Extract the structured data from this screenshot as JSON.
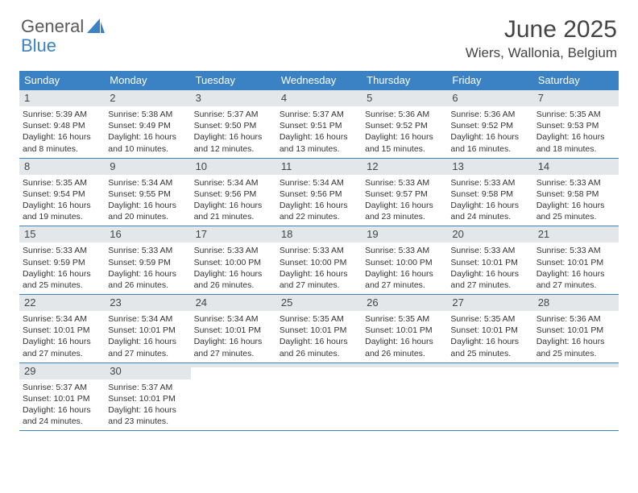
{
  "brand": {
    "part1": "General",
    "part2": "Blue"
  },
  "title": "June 2025",
  "location": "Wiers, Wallonia, Belgium",
  "colors": {
    "header_bg": "#3b82c4",
    "daynum_bg": "#e4e7ea",
    "text": "#333333",
    "rule": "#3b82c4"
  },
  "dayNames": [
    "Sunday",
    "Monday",
    "Tuesday",
    "Wednesday",
    "Thursday",
    "Friday",
    "Saturday"
  ],
  "weeks": [
    [
      {
        "n": "1",
        "sr": "5:39 AM",
        "ss": "9:48 PM",
        "dl": "16 hours and 8 minutes."
      },
      {
        "n": "2",
        "sr": "5:38 AM",
        "ss": "9:49 PM",
        "dl": "16 hours and 10 minutes."
      },
      {
        "n": "3",
        "sr": "5:37 AM",
        "ss": "9:50 PM",
        "dl": "16 hours and 12 minutes."
      },
      {
        "n": "4",
        "sr": "5:37 AM",
        "ss": "9:51 PM",
        "dl": "16 hours and 13 minutes."
      },
      {
        "n": "5",
        "sr": "5:36 AM",
        "ss": "9:52 PM",
        "dl": "16 hours and 15 minutes."
      },
      {
        "n": "6",
        "sr": "5:36 AM",
        "ss": "9:52 PM",
        "dl": "16 hours and 16 minutes."
      },
      {
        "n": "7",
        "sr": "5:35 AM",
        "ss": "9:53 PM",
        "dl": "16 hours and 18 minutes."
      }
    ],
    [
      {
        "n": "8",
        "sr": "5:35 AM",
        "ss": "9:54 PM",
        "dl": "16 hours and 19 minutes."
      },
      {
        "n": "9",
        "sr": "5:34 AM",
        "ss": "9:55 PM",
        "dl": "16 hours and 20 minutes."
      },
      {
        "n": "10",
        "sr": "5:34 AM",
        "ss": "9:56 PM",
        "dl": "16 hours and 21 minutes."
      },
      {
        "n": "11",
        "sr": "5:34 AM",
        "ss": "9:56 PM",
        "dl": "16 hours and 22 minutes."
      },
      {
        "n": "12",
        "sr": "5:33 AM",
        "ss": "9:57 PM",
        "dl": "16 hours and 23 minutes."
      },
      {
        "n": "13",
        "sr": "5:33 AM",
        "ss": "9:58 PM",
        "dl": "16 hours and 24 minutes."
      },
      {
        "n": "14",
        "sr": "5:33 AM",
        "ss": "9:58 PM",
        "dl": "16 hours and 25 minutes."
      }
    ],
    [
      {
        "n": "15",
        "sr": "5:33 AM",
        "ss": "9:59 PM",
        "dl": "16 hours and 25 minutes."
      },
      {
        "n": "16",
        "sr": "5:33 AM",
        "ss": "9:59 PM",
        "dl": "16 hours and 26 minutes."
      },
      {
        "n": "17",
        "sr": "5:33 AM",
        "ss": "10:00 PM",
        "dl": "16 hours and 26 minutes."
      },
      {
        "n": "18",
        "sr": "5:33 AM",
        "ss": "10:00 PM",
        "dl": "16 hours and 27 minutes."
      },
      {
        "n": "19",
        "sr": "5:33 AM",
        "ss": "10:00 PM",
        "dl": "16 hours and 27 minutes."
      },
      {
        "n": "20",
        "sr": "5:33 AM",
        "ss": "10:01 PM",
        "dl": "16 hours and 27 minutes."
      },
      {
        "n": "21",
        "sr": "5:33 AM",
        "ss": "10:01 PM",
        "dl": "16 hours and 27 minutes."
      }
    ],
    [
      {
        "n": "22",
        "sr": "5:34 AM",
        "ss": "10:01 PM",
        "dl": "16 hours and 27 minutes."
      },
      {
        "n": "23",
        "sr": "5:34 AM",
        "ss": "10:01 PM",
        "dl": "16 hours and 27 minutes."
      },
      {
        "n": "24",
        "sr": "5:34 AM",
        "ss": "10:01 PM",
        "dl": "16 hours and 27 minutes."
      },
      {
        "n": "25",
        "sr": "5:35 AM",
        "ss": "10:01 PM",
        "dl": "16 hours and 26 minutes."
      },
      {
        "n": "26",
        "sr": "5:35 AM",
        "ss": "10:01 PM",
        "dl": "16 hours and 26 minutes."
      },
      {
        "n": "27",
        "sr": "5:35 AM",
        "ss": "10:01 PM",
        "dl": "16 hours and 25 minutes."
      },
      {
        "n": "28",
        "sr": "5:36 AM",
        "ss": "10:01 PM",
        "dl": "16 hours and 25 minutes."
      }
    ],
    [
      {
        "n": "29",
        "sr": "5:37 AM",
        "ss": "10:01 PM",
        "dl": "16 hours and 24 minutes."
      },
      {
        "n": "30",
        "sr": "5:37 AM",
        "ss": "10:01 PM",
        "dl": "16 hours and 23 minutes."
      },
      {
        "empty": true
      },
      {
        "empty": true
      },
      {
        "empty": true
      },
      {
        "empty": true
      },
      {
        "empty": true
      }
    ]
  ],
  "labels": {
    "sunrise": "Sunrise:",
    "sunset": "Sunset:",
    "daylight": "Daylight:"
  }
}
